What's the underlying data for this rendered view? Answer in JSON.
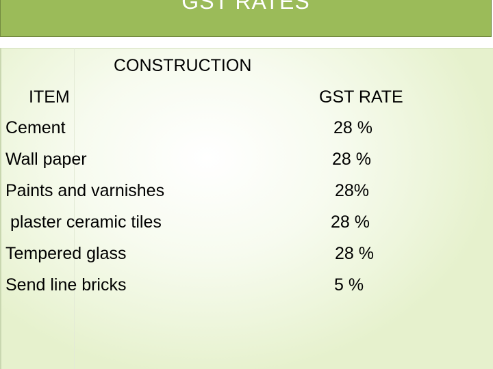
{
  "slide": {
    "title": "GST RATES",
    "heading": "CONSTRUCTION",
    "table": {
      "headers": {
        "item": "ITEM",
        "rate": "GST RATE"
      },
      "rows": [
        {
          "item": "Cement",
          "rate": "28 %"
        },
        {
          "item": "Wall paper",
          "rate": "28 %"
        },
        {
          "item": "Paints and varnishes",
          "rate": "28%"
        },
        {
          "item": " plaster ceramic tiles",
          "rate": "28 %"
        },
        {
          "item": "Tempered glass",
          "rate": "28 %"
        },
        {
          "item": "Send line bricks",
          "rate": "5 %"
        }
      ]
    },
    "colors": {
      "title_bar": "#9bbb59",
      "title_text": "#ffffff",
      "content_bg": "#eef6dd"
    }
  }
}
